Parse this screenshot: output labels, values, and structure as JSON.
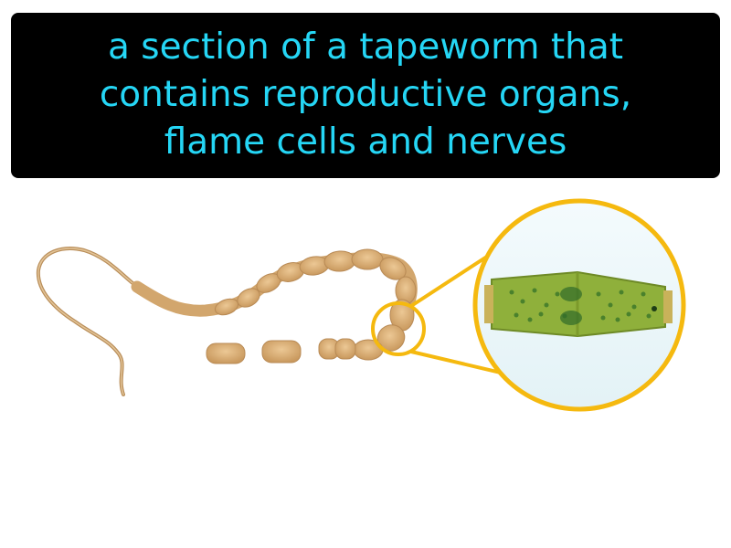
{
  "caption": {
    "lines": [
      "a section of a tapeworm that",
      "contains reproductive organs,",
      "flame cells and nerves"
    ]
  },
  "colors": {
    "caption_background": "#000000",
    "caption_text": "#25d6f5",
    "highlight_ring": "#f5b90f",
    "worm_body": "#d9b07a",
    "segment_interior": "#86a832"
  },
  "illustration": {
    "subject": "tapeworm-with-magnified-proglottid"
  }
}
